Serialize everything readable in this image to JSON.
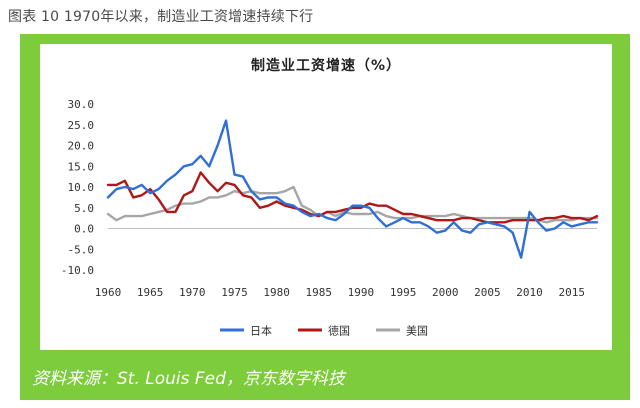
{
  "figure_caption": "图表 10 1970年以来，制造业工资增速持续下行",
  "source": "资料来源：St. Louis Fed，京东数字科技",
  "colors": {
    "frame": "#7ccc3c",
    "japan": "#2f6fd6",
    "germany": "#b01717",
    "usa": "#a6a6a6"
  },
  "chart_data": {
    "type": "line",
    "title": "制造业工资增速（%）",
    "xlabel": "",
    "ylabel": "",
    "xlim": [
      1960,
      2018
    ],
    "ylim": [
      -10,
      30
    ],
    "yticks": [
      "30.0",
      "25.0",
      "20.0",
      "15.0",
      "10.0",
      "5.0",
      "0.0",
      "-5.0",
      "-10.0"
    ],
    "xticks": [
      "1960",
      "1965",
      "1970",
      "1975",
      "1980",
      "1985",
      "1990",
      "1995",
      "2000",
      "2005",
      "2010",
      "2015"
    ],
    "legend_position": "bottom",
    "x": [
      1960,
      1961,
      1962,
      1963,
      1964,
      1965,
      1966,
      1967,
      1968,
      1969,
      1970,
      1971,
      1972,
      1973,
      1974,
      1975,
      1976,
      1977,
      1978,
      1979,
      1980,
      1981,
      1982,
      1983,
      1984,
      1985,
      1986,
      1987,
      1988,
      1989,
      1990,
      1991,
      1992,
      1993,
      1994,
      1995,
      1996,
      1997,
      1998,
      1999,
      2000,
      2001,
      2002,
      2003,
      2004,
      2005,
      2006,
      2007,
      2008,
      2009,
      2010,
      2011,
      2012,
      2013,
      2014,
      2015,
      2016,
      2017,
      2018
    ],
    "series": [
      {
        "name": "日本",
        "color": "#2f6fd6",
        "values": [
          7.5,
          9.5,
          10,
          9.5,
          10.5,
          8.5,
          9.5,
          11.5,
          13,
          15,
          15.5,
          17.5,
          15,
          20,
          26,
          13,
          12.5,
          9,
          7,
          7.5,
          7.5,
          6,
          5.5,
          4,
          3,
          3.5,
          2.5,
          2,
          3.5,
          5.5,
          5.5,
          5,
          2.5,
          0.5,
          1.5,
          2.5,
          1.5,
          1.5,
          0.5,
          -1,
          -0.5,
          1.5,
          -0.5,
          -1,
          1,
          1.5,
          1,
          0.5,
          -1,
          -7,
          4,
          1.5,
          -0.5,
          0,
          1.5,
          0.5,
          1,
          1.5,
          1.5
        ]
      },
      {
        "name": "德国",
        "color": "#b01717",
        "values": [
          10.5,
          10.5,
          11.5,
          7.5,
          8,
          9.5,
          7,
          4,
          4,
          8,
          9,
          13.5,
          11,
          9,
          11,
          10.5,
          8,
          7.5,
          5,
          5.5,
          6.5,
          5.5,
          5,
          4.5,
          3.5,
          3,
          4,
          4,
          4.5,
          5,
          5,
          6,
          5.5,
          5.5,
          4.5,
          3.5,
          3.5,
          3,
          2.5,
          2,
          2,
          2,
          2.5,
          2.5,
          2,
          1.5,
          1.5,
          1.5,
          2,
          2,
          2,
          2,
          2.5,
          2.5,
          3,
          2.5,
          2.5,
          2,
          3
        ]
      },
      {
        "name": "美国",
        "color": "#a6a6a6",
        "values": [
          3.5,
          2,
          3,
          3,
          3,
          3.5,
          4,
          4.5,
          5.5,
          6,
          6,
          6.5,
          7.5,
          7.5,
          8,
          9,
          8.5,
          9,
          8.5,
          8.5,
          8.5,
          9,
          10,
          5.5,
          4.5,
          3,
          4,
          3,
          4,
          3.5,
          3.5,
          3.5,
          4,
          3,
          2.5,
          2.5,
          2.5,
          3,
          3,
          3,
          3,
          3.5,
          3,
          2.5,
          2.5,
          2.5,
          2.5,
          2.5,
          2.5,
          2.5,
          2.5,
          2,
          1.5,
          2,
          2,
          2,
          2.5,
          2.5,
          2.5
        ]
      }
    ]
  }
}
